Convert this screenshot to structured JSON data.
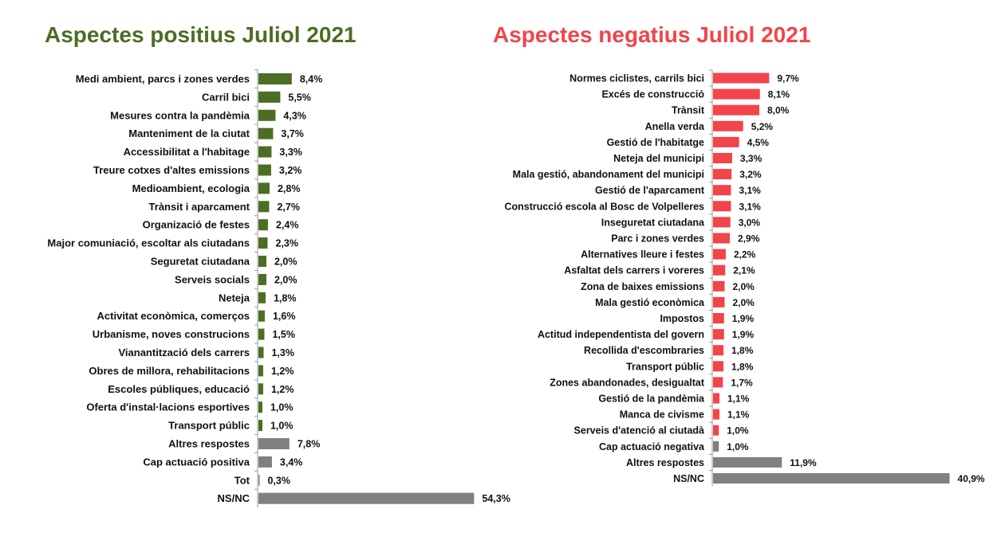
{
  "colors": {
    "positive": "#4b6d24",
    "negative": "#f2444b",
    "other": "#808080",
    "axis": "#9a9a9a"
  },
  "chart_data": [
    {
      "type": "bar",
      "orientation": "horizontal",
      "title": "Aspectes positius Juliol 2021",
      "title_color": "#4b6d24",
      "categories": [
        "Medi ambient, parcs i zones verdes",
        "Carril bici",
        "Mesures contra la pandèmia",
        "Manteniment de la ciutat",
        "Accessibilitat a l'habitage",
        "Treure cotxes d'altes emissions",
        "Medioambient, ecologia",
        "Trànsit i aparcament",
        "Organizació de festes",
        "Major comuniació, escoltar als ciutadans",
        "Seguretat ciutadana",
        "Serveis socials",
        "Neteja",
        "Activitat econòmica, comerços",
        "Urbanisme, noves construcions",
        "Vianantització dels carrers",
        "Obres de millora, rehabilitacions",
        "Escoles públiques, educació",
        "Oferta d'instal·lacions esportives",
        "Transport públic",
        "Altres respostes",
        "Cap actuació positiva",
        "Tot",
        "NS/NC"
      ],
      "values": [
        8.4,
        5.5,
        4.3,
        3.7,
        3.3,
        3.2,
        2.8,
        2.7,
        2.4,
        2.3,
        2.0,
        2.0,
        1.8,
        1.6,
        1.5,
        1.3,
        1.2,
        1.2,
        1.0,
        1.0,
        7.8,
        3.4,
        0.3,
        54.3
      ],
      "labels": [
        "8,4%",
        "5,5%",
        "4,3%",
        "3,7%",
        "3,3%",
        "3,2%",
        "2,8%",
        "2,7%",
        "2,4%",
        "2,3%",
        "2,0%",
        "2,0%",
        "1,8%",
        "1,6%",
        "1,5%",
        "1,3%",
        "1,2%",
        "1,2%",
        "1,0%",
        "1,0%",
        "7,8%",
        "3,4%",
        "0,3%",
        "54,3%"
      ],
      "groups": [
        "main",
        "main",
        "main",
        "main",
        "main",
        "main",
        "main",
        "main",
        "main",
        "main",
        "main",
        "main",
        "main",
        "main",
        "main",
        "main",
        "main",
        "main",
        "main",
        "main",
        "other",
        "other",
        "other",
        "other"
      ],
      "unit": "%",
      "xlim": [
        0,
        55
      ]
    },
    {
      "type": "bar",
      "orientation": "horizontal",
      "title": "Aspectes negatius Juliol 2021",
      "title_color": "#f2444b",
      "categories": [
        "Normes ciclistes, carrils bici",
        "Excés de construcció",
        "Trànsit",
        "Anella verda",
        "Gestió de l'habitatge",
        "Neteja del municipi",
        "Mala gestió, abandonament del municipi",
        "Gestió de l'aparcament",
        "Construcció escola al Bosc de Volpelleres",
        "Inseguretat ciutadana",
        "Parc i zones verdes",
        "Alternatives lleure i festes",
        "Asfaltat dels carrers i voreres",
        "Zona de baixes emissions",
        "Mala gestió econòmica",
        "Impostos",
        "Actitud independentista del govern",
        "Recollida d'escombraries",
        "Transport públic",
        "Zones abandonades, desigualtat",
        "Gestió de la pandèmia",
        "Manca de civisme",
        "Serveis d'atenció al ciutadà",
        "Cap actuació negativa",
        "Altres respostes",
        "NS/NC"
      ],
      "values": [
        9.7,
        8.1,
        8.0,
        5.2,
        4.5,
        3.3,
        3.2,
        3.1,
        3.1,
        3.0,
        2.9,
        2.2,
        2.1,
        2.0,
        2.0,
        1.9,
        1.9,
        1.8,
        1.8,
        1.7,
        1.1,
        1.1,
        1.0,
        1.0,
        11.9,
        40.9
      ],
      "labels": [
        "9,7%",
        "8,1%",
        "8,0%",
        "5,2%",
        "4,5%",
        "3,3%",
        "3,2%",
        "3,1%",
        "3,1%",
        "3,0%",
        "2,9%",
        "2,2%",
        "2,1%",
        "2,0%",
        "2,0%",
        "1,9%",
        "1,9%",
        "1,8%",
        "1,8%",
        "1,7%",
        "1,1%",
        "1,1%",
        "1,0%",
        "1,0%",
        "11,9%",
        "40,9%"
      ],
      "groups": [
        "main",
        "main",
        "main",
        "main",
        "main",
        "main",
        "main",
        "main",
        "main",
        "main",
        "main",
        "main",
        "main",
        "main",
        "main",
        "main",
        "main",
        "main",
        "main",
        "main",
        "main",
        "main",
        "main",
        "other",
        "other",
        "other"
      ],
      "unit": "%",
      "xlim": [
        0,
        41
      ]
    }
  ]
}
